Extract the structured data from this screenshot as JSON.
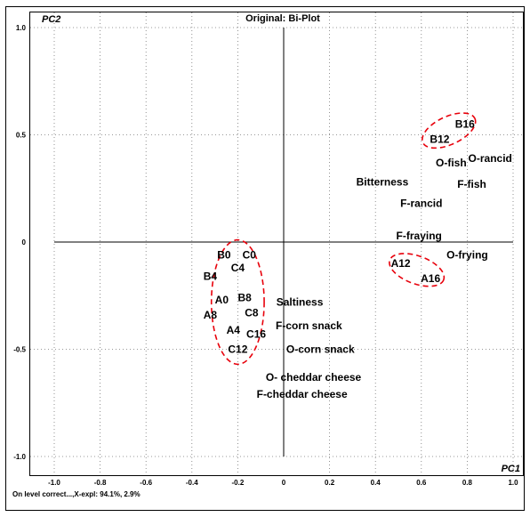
{
  "chart_data": {
    "type": "scatter",
    "title": "Original: Bi-Plot",
    "xlabel": "PC1",
    "ylabel": "PC2",
    "xlim": [
      -1.0,
      1.0
    ],
    "ylim": [
      -1.0,
      1.0
    ],
    "xticks": [
      "-1.0",
      "-0.8",
      "-0.6",
      "-0.4",
      "-0.2",
      "0",
      "0.2",
      "0.4",
      "0.6",
      "0.8",
      "1.0"
    ],
    "xtick_values": [
      -1.0,
      -0.8,
      -0.6,
      -0.4,
      -0.2,
      0,
      0.2,
      0.4,
      0.6,
      0.8,
      1.0
    ],
    "yticks": [
      "1.0",
      "0.5",
      "0",
      "-0.5",
      "-1.0"
    ],
    "ytick_values": [
      1.0,
      0.5,
      0,
      -0.5,
      -1.0
    ],
    "grid": true,
    "footer": "On level correct...,X-expl: 94.1%, 2.9%",
    "points": [
      {
        "label": "B16",
        "x": 0.79,
        "y": 0.55
      },
      {
        "label": "B12",
        "x": 0.68,
        "y": 0.48
      },
      {
        "label": "O-fish",
        "x": 0.73,
        "y": 0.37
      },
      {
        "label": "O-rancid",
        "x": 0.9,
        "y": 0.39
      },
      {
        "label": "Bitterness",
        "x": 0.43,
        "y": 0.28
      },
      {
        "label": "F-fish",
        "x": 0.82,
        "y": 0.27
      },
      {
        "label": "F-rancid",
        "x": 0.6,
        "y": 0.18
      },
      {
        "label": "F-fraying",
        "x": 0.59,
        "y": 0.03
      },
      {
        "label": "O-frying",
        "x": 0.8,
        "y": -0.06
      },
      {
        "label": "A12",
        "x": 0.51,
        "y": -0.1
      },
      {
        "label": "A16",
        "x": 0.64,
        "y": -0.17
      },
      {
        "label": "B0",
        "x": -0.26,
        "y": -0.06
      },
      {
        "label": "C0",
        "x": -0.15,
        "y": -0.06
      },
      {
        "label": "C4",
        "x": -0.2,
        "y": -0.12
      },
      {
        "label": "B4",
        "x": -0.32,
        "y": -0.16
      },
      {
        "label": "A0",
        "x": -0.27,
        "y": -0.27
      },
      {
        "label": "B8",
        "x": -0.17,
        "y": -0.26
      },
      {
        "label": "Saltiness",
        "x": 0.07,
        "y": -0.28
      },
      {
        "label": "A8",
        "x": -0.32,
        "y": -0.34
      },
      {
        "label": "C8",
        "x": -0.14,
        "y": -0.33
      },
      {
        "label": "F-corn snack",
        "x": 0.11,
        "y": -0.39
      },
      {
        "label": "A4",
        "x": -0.22,
        "y": -0.41
      },
      {
        "label": "C16",
        "x": -0.12,
        "y": -0.43
      },
      {
        "label": "O-corn snack",
        "x": 0.16,
        "y": -0.5
      },
      {
        "label": "C12",
        "x": -0.2,
        "y": -0.5
      },
      {
        "label": "O- cheddar cheese",
        "x": 0.13,
        "y": -0.63
      },
      {
        "label": "F-cheddar cheese",
        "x": 0.08,
        "y": -0.71
      }
    ],
    "clusters": [
      {
        "cx": -0.2,
        "cy": -0.28,
        "rx": 0.115,
        "ry": 0.29,
        "rot": 0,
        "color": "#e8000b"
      },
      {
        "cx": 0.72,
        "cy": 0.52,
        "rx": 0.125,
        "ry": 0.065,
        "rot": -25,
        "color": "#e8000b"
      },
      {
        "cx": 0.58,
        "cy": -0.13,
        "rx": 0.125,
        "ry": 0.065,
        "rot": 20,
        "color": "#e8000b"
      }
    ]
  }
}
